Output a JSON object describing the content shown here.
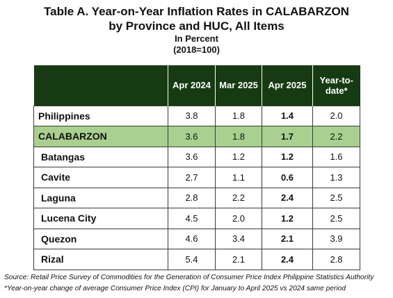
{
  "title": {
    "line1": "Table A. Year-on-Year Inflation Rates in CALABARZON",
    "line2": "by Province and HUC, All Items",
    "unit": "In Percent",
    "base": "(2018=100)"
  },
  "table": {
    "headers": [
      "",
      "Apr 2024",
      "Mar 2025",
      "Apr 2025",
      "Year-to-date*"
    ],
    "rows": [
      {
        "name": "Philippines",
        "values": [
          "3.8",
          "1.8",
          "1.4",
          "2.0"
        ],
        "highlight": false,
        "indent": false
      },
      {
        "name": "CALABARZON",
        "values": [
          "3.6",
          "1.8",
          "1.7",
          "2.2"
        ],
        "highlight": true,
        "indent": false
      },
      {
        "name": "Batangas",
        "values": [
          "3.6",
          "1.2",
          "1.2",
          "1.6"
        ],
        "highlight": false,
        "indent": true
      },
      {
        "name": "Cavite",
        "values": [
          "2.7",
          "1.1",
          "0.6",
          "1.3"
        ],
        "highlight": false,
        "indent": true
      },
      {
        "name": "Laguna",
        "values": [
          "2.8",
          "2.2",
          "2.4",
          "2.5"
        ],
        "highlight": false,
        "indent": true
      },
      {
        "name": "Lucena City",
        "values": [
          "4.5",
          "2.0",
          "1.2",
          "2.5"
        ],
        "highlight": false,
        "indent": true
      },
      {
        "name": "Quezon",
        "values": [
          "4.6",
          "3.4",
          "2.1",
          "3.9"
        ],
        "highlight": false,
        "indent": true
      },
      {
        "name": "Rizal",
        "values": [
          "5.4",
          "2.1",
          "2.4",
          "2.8"
        ],
        "highlight": false,
        "indent": true
      }
    ]
  },
  "footnotes": {
    "source": "Source: Retail Price Survey of Commodities for the Generation of Consumer Price Index Philippine Statistics Authority",
    "note": "*Year-on-year change of average Consumer Price Index (CPI) for January to April 2025 vs 2024 same period"
  },
  "colors": {
    "header_bg": "#163b12",
    "highlight_row": "#a9d08e"
  }
}
